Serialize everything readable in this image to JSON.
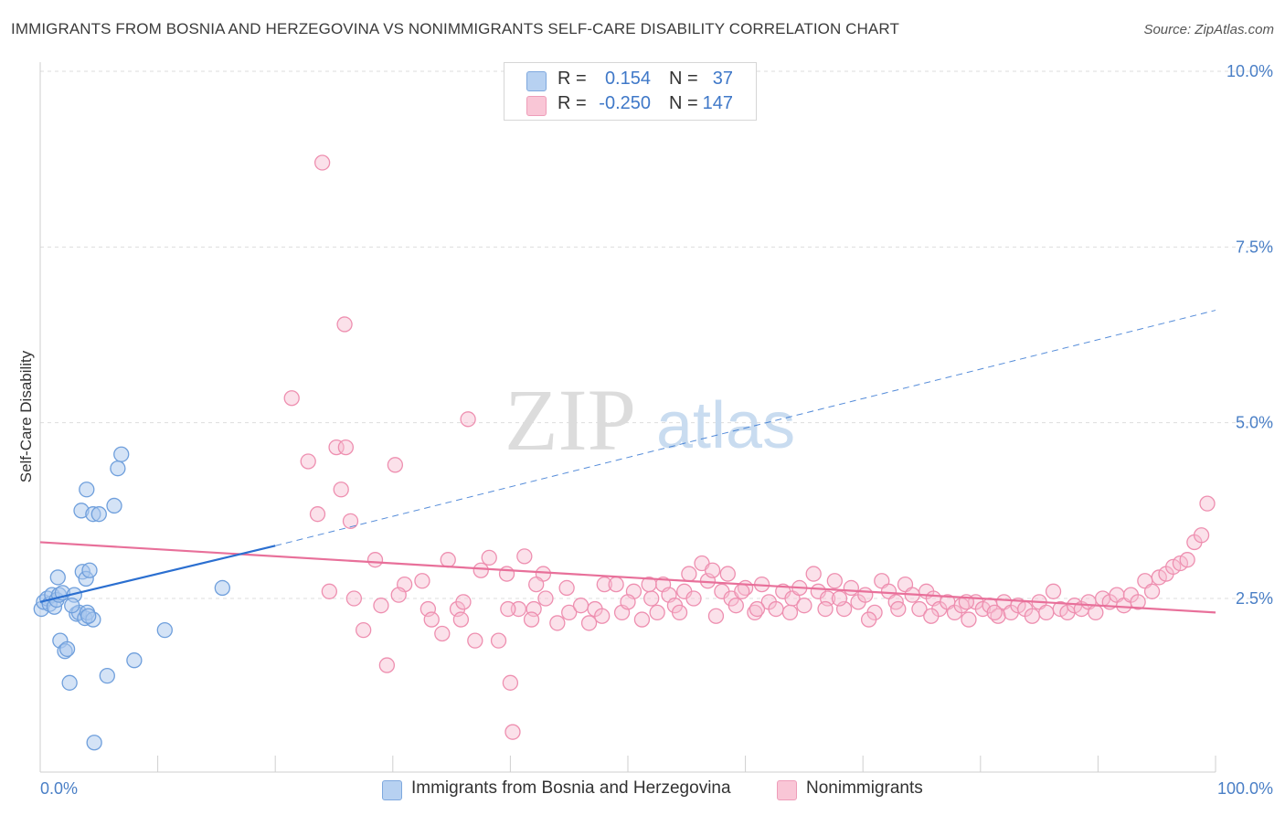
{
  "header": {
    "title": "IMMIGRANTS FROM BOSNIA AND HERZEGOVINA VS NONIMMIGRANTS SELF-CARE DISABILITY CORRELATION CHART",
    "source": "Source: ZipAtlas.com"
  },
  "watermark": {
    "part1": "ZIP",
    "part2": "atlas"
  },
  "legend_top": {
    "rows": [
      {
        "r_label": "R =",
        "r_value": "0.154",
        "n_label": "N =",
        "n_value": "37"
      },
      {
        "r_label": "R =",
        "r_value": "-0.250",
        "n_label": "N =",
        "n_value": "147"
      }
    ]
  },
  "legend_bottom": {
    "items": [
      {
        "label": "Immigrants from Bosnia and Herzegovina"
      },
      {
        "label": "Nonimmigrants"
      }
    ]
  },
  "colors": {
    "blue_fill": "#a9c8ee",
    "blue_stroke": "#6f9fdc",
    "blue_line": "#2b6fd0",
    "pink_fill": "#f7bcd0",
    "pink_stroke": "#ee8fb0",
    "pink_line": "#e8709a",
    "tick_label": "#4a7fc6",
    "grid": "#dddddd"
  },
  "chart_data": {
    "type": "scatter",
    "title": "IMMIGRANTS FROM BOSNIA AND HERZEGOVINA VS NONIMMIGRANTS SELF-CARE DISABILITY CORRELATION CHART",
    "ylabel": "Self-Care Disability",
    "xlabel": "",
    "xlim": [
      0,
      100
    ],
    "ylim": [
      0,
      10.2
    ],
    "x_tick_labels": [
      "0.0%",
      "100.0%"
    ],
    "y_ticks": [
      2.5,
      5.0,
      7.5,
      10.0
    ],
    "y_tick_labels": [
      "2.5%",
      "5.0%",
      "7.5%",
      "10.0%"
    ],
    "grid": true,
    "legend_placement": "bottom",
    "series": [
      {
        "name": "Immigrants from Bosnia and Herzegovina",
        "R": 0.154,
        "N": 37,
        "trend": {
          "solid": [
            [
              0,
              2.45
            ],
            [
              20,
              3.25
            ]
          ],
          "dashed": [
            [
              20,
              3.25
            ],
            [
              100,
              6.6
            ]
          ]
        },
        "points": [
          [
            0.1,
            2.35
          ],
          [
            0.3,
            2.45
          ],
          [
            0.6,
            2.5
          ],
          [
            0.8,
            2.42
          ],
          [
            1.0,
            2.55
          ],
          [
            1.2,
            2.38
          ],
          [
            1.4,
            2.48
          ],
          [
            1.6,
            2.55
          ],
          [
            1.5,
            2.8
          ],
          [
            1.7,
            1.9
          ],
          [
            1.9,
            2.58
          ],
          [
            2.1,
            1.75
          ],
          [
            2.3,
            1.78
          ],
          [
            2.5,
            1.3
          ],
          [
            2.9,
            2.55
          ],
          [
            3.1,
            2.28
          ],
          [
            3.3,
            2.3
          ],
          [
            3.5,
            3.75
          ],
          [
            3.6,
            2.88
          ],
          [
            3.8,
            2.22
          ],
          [
            3.9,
            2.78
          ],
          [
            3.95,
            4.05
          ],
          [
            4.0,
            2.3
          ],
          [
            4.2,
            2.9
          ],
          [
            4.5,
            2.2
          ],
          [
            4.5,
            3.7
          ],
          [
            4.6,
            0.45
          ],
          [
            5.0,
            3.7
          ],
          [
            5.7,
            1.4
          ],
          [
            6.3,
            3.82
          ],
          [
            6.6,
            4.35
          ],
          [
            6.9,
            4.55
          ],
          [
            8.0,
            1.62
          ],
          [
            10.6,
            2.05
          ],
          [
            15.5,
            2.65
          ],
          [
            4.1,
            2.25
          ],
          [
            2.7,
            2.4
          ]
        ]
      },
      {
        "name": "Nonimmigrants",
        "R": -0.25,
        "N": 147,
        "trend": {
          "solid": [
            [
              0,
              3.3
            ],
            [
              100,
              2.3
            ]
          ]
        },
        "points": [
          [
            24.0,
            8.7
          ],
          [
            25.9,
            6.4
          ],
          [
            21.4,
            5.35
          ],
          [
            36.4,
            5.05
          ],
          [
            25.2,
            4.65
          ],
          [
            26.0,
            4.65
          ],
          [
            22.8,
            4.45
          ],
          [
            30.2,
            4.4
          ],
          [
            25.6,
            4.05
          ],
          [
            23.6,
            3.7
          ],
          [
            26.4,
            3.6
          ],
          [
            41.2,
            3.1
          ],
          [
            34.7,
            3.05
          ],
          [
            38.2,
            3.08
          ],
          [
            39.7,
            2.85
          ],
          [
            42.8,
            2.85
          ],
          [
            28.5,
            3.05
          ],
          [
            31.0,
            2.7
          ],
          [
            26.7,
            2.5
          ],
          [
            29.0,
            2.4
          ],
          [
            30.5,
            2.55
          ],
          [
            33.0,
            2.35
          ],
          [
            33.3,
            2.2
          ],
          [
            34.2,
            2.0
          ],
          [
            35.5,
            2.35
          ],
          [
            35.8,
            2.2
          ],
          [
            37.0,
            1.9
          ],
          [
            39.0,
            1.9
          ],
          [
            27.5,
            2.05
          ],
          [
            29.5,
            1.55
          ],
          [
            40.7,
            2.35
          ],
          [
            42.0,
            2.35
          ],
          [
            43.0,
            2.5
          ],
          [
            44.0,
            2.15
          ],
          [
            45.0,
            2.3
          ],
          [
            46.0,
            2.4
          ],
          [
            46.7,
            2.15
          ],
          [
            47.2,
            2.35
          ],
          [
            48.0,
            2.7
          ],
          [
            49.0,
            2.7
          ],
          [
            49.5,
            2.3
          ],
          [
            50.5,
            2.6
          ],
          [
            51.2,
            2.2
          ],
          [
            52.0,
            2.5
          ],
          [
            52.5,
            2.3
          ],
          [
            53.0,
            2.7
          ],
          [
            53.5,
            2.55
          ],
          [
            54.0,
            2.4
          ],
          [
            54.8,
            2.6
          ],
          [
            55.6,
            2.5
          ],
          [
            56.3,
            3.0
          ],
          [
            56.8,
            2.75
          ],
          [
            57.2,
            2.9
          ],
          [
            58.0,
            2.6
          ],
          [
            58.8,
            2.5
          ],
          [
            59.2,
            2.4
          ],
          [
            60.0,
            2.65
          ],
          [
            60.8,
            2.3
          ],
          [
            61.4,
            2.7
          ],
          [
            62.0,
            2.45
          ],
          [
            62.6,
            2.35
          ],
          [
            63.2,
            2.6
          ],
          [
            64.0,
            2.5
          ],
          [
            64.6,
            2.65
          ],
          [
            65.0,
            2.4
          ],
          [
            65.8,
            2.85
          ],
          [
            66.2,
            2.6
          ],
          [
            67.0,
            2.5
          ],
          [
            67.6,
            2.75
          ],
          [
            68.4,
            2.35
          ],
          [
            69.0,
            2.65
          ],
          [
            69.6,
            2.45
          ],
          [
            70.2,
            2.55
          ],
          [
            71.0,
            2.3
          ],
          [
            71.6,
            2.75
          ],
          [
            72.2,
            2.6
          ],
          [
            72.8,
            2.45
          ],
          [
            73.6,
            2.7
          ],
          [
            74.2,
            2.55
          ],
          [
            74.8,
            2.35
          ],
          [
            75.4,
            2.6
          ],
          [
            76.0,
            2.5
          ],
          [
            76.5,
            2.35
          ],
          [
            77.2,
            2.45
          ],
          [
            77.8,
            2.3
          ],
          [
            78.4,
            2.4
          ],
          [
            79.0,
            2.2
          ],
          [
            79.6,
            2.45
          ],
          [
            80.2,
            2.35
          ],
          [
            80.8,
            2.4
          ],
          [
            81.5,
            2.25
          ],
          [
            82.0,
            2.45
          ],
          [
            82.6,
            2.3
          ],
          [
            83.2,
            2.4
          ],
          [
            83.8,
            2.35
          ],
          [
            84.4,
            2.25
          ],
          [
            85.0,
            2.45
          ],
          [
            85.6,
            2.3
          ],
          [
            86.2,
            2.6
          ],
          [
            86.8,
            2.35
          ],
          [
            87.4,
            2.3
          ],
          [
            88.0,
            2.4
          ],
          [
            88.6,
            2.35
          ],
          [
            89.2,
            2.45
          ],
          [
            89.8,
            2.3
          ],
          [
            90.4,
            2.5
          ],
          [
            91.0,
            2.45
          ],
          [
            91.6,
            2.55
          ],
          [
            92.2,
            2.4
          ],
          [
            92.8,
            2.55
          ],
          [
            93.4,
            2.45
          ],
          [
            94.0,
            2.75
          ],
          [
            94.6,
            2.6
          ],
          [
            95.2,
            2.8
          ],
          [
            95.8,
            2.85
          ],
          [
            96.4,
            2.95
          ],
          [
            97.0,
            3.0
          ],
          [
            97.6,
            3.05
          ],
          [
            98.2,
            3.3
          ],
          [
            98.8,
            3.4
          ],
          [
            99.3,
            3.85
          ],
          [
            24.6,
            2.6
          ],
          [
            32.5,
            2.75
          ],
          [
            37.5,
            2.9
          ],
          [
            42.2,
            2.7
          ],
          [
            44.8,
            2.65
          ],
          [
            47.8,
            2.25
          ],
          [
            50.0,
            2.45
          ],
          [
            51.8,
            2.7
          ],
          [
            54.4,
            2.3
          ],
          [
            55.2,
            2.85
          ],
          [
            57.5,
            2.25
          ],
          [
            58.5,
            2.85
          ],
          [
            59.7,
            2.6
          ],
          [
            61.0,
            2.35
          ],
          [
            63.8,
            2.3
          ],
          [
            66.8,
            2.35
          ],
          [
            68.0,
            2.5
          ],
          [
            70.5,
            2.2
          ],
          [
            73.0,
            2.35
          ],
          [
            75.8,
            2.25
          ],
          [
            78.8,
            2.45
          ],
          [
            81.2,
            2.3
          ],
          [
            39.8,
            2.35
          ],
          [
            41.8,
            2.2
          ],
          [
            40.0,
            1.3
          ],
          [
            40.2,
            0.6
          ],
          [
            36.0,
            2.45
          ]
        ]
      }
    ]
  }
}
